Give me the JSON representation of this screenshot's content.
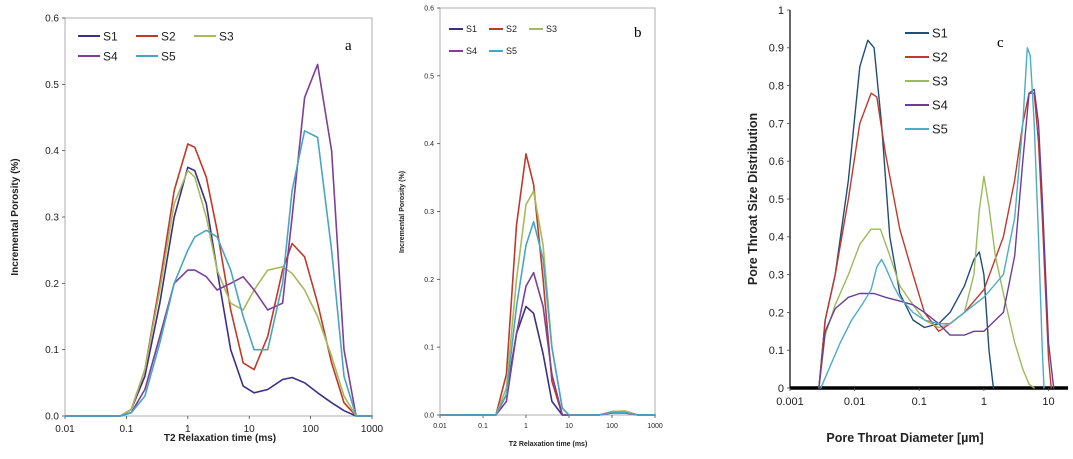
{
  "chart_data": [
    {
      "type": "line",
      "panel_label": "a",
      "xlabel": "T2 Relaxation  time  (ms)",
      "ylabel": "Incremental Porosity (%)",
      "xscale": "log",
      "xlim": [
        0.01,
        1000
      ],
      "ylim": [
        0,
        0.6
      ],
      "x_ticks": [
        "0.01",
        "0.1",
        "1",
        "10",
        "100",
        "1000"
      ],
      "y_ticks": [
        "0.0",
        "0.1",
        "0.2",
        "0.3",
        "0.4",
        "0.5",
        "0.6"
      ],
      "legend": [
        "S1",
        "S2",
        "S3",
        "S4",
        "S5"
      ],
      "series": [
        {
          "name": "S1",
          "color": "#3b2f8a",
          "x": [
            0.01,
            0.08,
            0.12,
            0.2,
            0.35,
            0.6,
            1,
            1.3,
            2,
            3,
            5,
            8,
            12,
            20,
            35,
            50,
            80,
            130,
            220,
            350,
            550,
            1000
          ],
          "y": [
            0,
            0,
            0.01,
            0.06,
            0.17,
            0.3,
            0.375,
            0.37,
            0.32,
            0.22,
            0.1,
            0.045,
            0.035,
            0.04,
            0.055,
            0.058,
            0.05,
            0.035,
            0.02,
            0.008,
            0,
            0
          ]
        },
        {
          "name": "S2",
          "color": "#c0392b",
          "x": [
            0.01,
            0.08,
            0.12,
            0.2,
            0.35,
            0.6,
            1,
            1.3,
            2,
            3,
            5,
            8,
            12,
            20,
            35,
            50,
            80,
            130,
            220,
            350,
            550,
            1000
          ],
          "y": [
            0,
            0,
            0.01,
            0.07,
            0.2,
            0.34,
            0.41,
            0.405,
            0.36,
            0.28,
            0.16,
            0.08,
            0.07,
            0.12,
            0.22,
            0.26,
            0.24,
            0.17,
            0.08,
            0.02,
            0,
            0
          ]
        },
        {
          "name": "S3",
          "color": "#a7ba5b",
          "x": [
            0.01,
            0.08,
            0.12,
            0.2,
            0.35,
            0.6,
            1,
            1.3,
            2,
            3,
            5,
            8,
            12,
            20,
            35,
            50,
            80,
            130,
            220,
            350,
            550,
            1000
          ],
          "y": [
            0,
            0,
            0.01,
            0.07,
            0.19,
            0.32,
            0.37,
            0.36,
            0.3,
            0.22,
            0.17,
            0.16,
            0.19,
            0.22,
            0.225,
            0.215,
            0.19,
            0.15,
            0.09,
            0.03,
            0,
            0
          ]
        },
        {
          "name": "S4",
          "color": "#7d3f98",
          "x": [
            0.01,
            0.08,
            0.12,
            0.2,
            0.35,
            0.6,
            1,
            1.3,
            2,
            3,
            5,
            8,
            12,
            20,
            35,
            50,
            80,
            130,
            220,
            350,
            550,
            1000
          ],
          "y": [
            0,
            0,
            0.005,
            0.04,
            0.12,
            0.2,
            0.22,
            0.22,
            0.21,
            0.19,
            0.2,
            0.21,
            0.19,
            0.16,
            0.17,
            0.3,
            0.48,
            0.53,
            0.4,
            0.1,
            0,
            0
          ]
        },
        {
          "name": "S5",
          "color": "#4aa5c5",
          "x": [
            0.01,
            0.08,
            0.12,
            0.2,
            0.35,
            0.6,
            1,
            1.3,
            2,
            3,
            5,
            8,
            12,
            20,
            35,
            50,
            80,
            130,
            220,
            350,
            550,
            1000
          ],
          "y": [
            0,
            0,
            0.005,
            0.03,
            0.11,
            0.2,
            0.25,
            0.27,
            0.28,
            0.27,
            0.22,
            0.15,
            0.1,
            0.1,
            0.2,
            0.34,
            0.43,
            0.42,
            0.25,
            0.06,
            0,
            0
          ]
        }
      ]
    },
    {
      "type": "line",
      "panel_label": "b",
      "xlabel": "T2 Relaxation time (ms)",
      "ylabel": "Incremental Porosity (%)",
      "xscale": "log",
      "xlim": [
        0.01,
        1000
      ],
      "ylim": [
        0,
        0.6
      ],
      "x_ticks": [
        "0.01",
        "0.1",
        "1",
        "10",
        "100",
        "1000"
      ],
      "y_ticks": [
        "0.0",
        "0.1",
        "0.2",
        "0.3",
        "0.4",
        "0.5",
        "0.6"
      ],
      "legend": [
        "S1",
        "S2",
        "S3",
        "S4",
        "S5"
      ],
      "series": [
        {
          "name": "S1",
          "color": "#3b2f8a",
          "x": [
            0.01,
            0.2,
            0.35,
            0.6,
            1,
            1.5,
            2.5,
            4,
            7,
            10,
            50,
            100,
            200,
            400,
            1000
          ],
          "y": [
            0,
            0,
            0.03,
            0.12,
            0.16,
            0.15,
            0.09,
            0.02,
            0,
            0,
            0,
            0.004,
            0.004,
            0,
            0
          ]
        },
        {
          "name": "S2",
          "color": "#c0392b",
          "x": [
            0.01,
            0.2,
            0.35,
            0.6,
            1,
            1.5,
            2.5,
            4,
            7,
            10,
            50,
            100,
            200,
            400,
            1000
          ],
          "y": [
            0,
            0,
            0.06,
            0.28,
            0.385,
            0.34,
            0.2,
            0.05,
            0,
            0,
            0,
            0.005,
            0.005,
            0,
            0
          ]
        },
        {
          "name": "S3",
          "color": "#a7ba5b",
          "x": [
            0.01,
            0.2,
            0.35,
            0.6,
            1,
            1.5,
            2.5,
            4,
            7,
            10,
            50,
            100,
            200,
            400,
            1000
          ],
          "y": [
            0,
            0,
            0.04,
            0.2,
            0.31,
            0.33,
            0.25,
            0.1,
            0.01,
            0,
            0,
            0.005,
            0.006,
            0,
            0
          ]
        },
        {
          "name": "S4",
          "color": "#7d3f98",
          "x": [
            0.01,
            0.2,
            0.35,
            0.6,
            1,
            1.5,
            2.5,
            4,
            7,
            10,
            50,
            100,
            200,
            400,
            1000
          ],
          "y": [
            0,
            0,
            0.02,
            0.12,
            0.19,
            0.21,
            0.16,
            0.06,
            0,
            0,
            0,
            0.003,
            0.003,
            0,
            0
          ]
        },
        {
          "name": "S5",
          "color": "#4aa5c5",
          "x": [
            0.01,
            0.2,
            0.35,
            0.6,
            1,
            1.5,
            2.5,
            4,
            7,
            10,
            50,
            100,
            200,
            400,
            1000
          ],
          "y": [
            0,
            0,
            0.03,
            0.16,
            0.25,
            0.285,
            0.23,
            0.1,
            0.01,
            0,
            0,
            0.004,
            0.004,
            0,
            0
          ]
        }
      ]
    },
    {
      "type": "line",
      "panel_label": "c",
      "xlabel": "Pore Throat Diameter [µm]",
      "ylabel": "Pore Throat  Size Distribution",
      "xscale": "log",
      "xlim": [
        0.001,
        20
      ],
      "ylim": [
        0,
        1
      ],
      "x_ticks": [
        "0.001",
        "0.01",
        "0.1",
        "1",
        "10"
      ],
      "y_ticks": [
        "0",
        "0.1",
        "0.2",
        "0.3",
        "0.4",
        "0.5",
        "0.6",
        "0.7",
        "0.8",
        "0.9",
        "1"
      ],
      "legend": [
        "S1",
        "S2",
        "S3",
        "S4",
        "S5"
      ],
      "series": [
        {
          "name": "S1",
          "color": "#1f4e79",
          "x": [
            0.0028,
            0.0035,
            0.005,
            0.008,
            0.012,
            0.016,
            0.02,
            0.026,
            0.035,
            0.05,
            0.08,
            0.12,
            0.2,
            0.3,
            0.5,
            0.7,
            0.85,
            1,
            1.2,
            1.4
          ],
          "y": [
            0,
            0.18,
            0.3,
            0.55,
            0.85,
            0.92,
            0.9,
            0.7,
            0.4,
            0.25,
            0.18,
            0.16,
            0.17,
            0.2,
            0.27,
            0.34,
            0.36,
            0.3,
            0.1,
            0
          ]
        },
        {
          "name": "S2",
          "color": "#c0392b",
          "x": [
            0.0028,
            0.0035,
            0.005,
            0.008,
            0.012,
            0.018,
            0.022,
            0.03,
            0.05,
            0.08,
            0.12,
            0.2,
            0.3,
            0.5,
            1,
            2,
            3,
            4,
            5,
            6,
            7,
            8,
            9,
            10,
            11
          ],
          "y": [
            0,
            0.18,
            0.3,
            0.5,
            0.7,
            0.78,
            0.77,
            0.62,
            0.42,
            0.3,
            0.2,
            0.15,
            0.17,
            0.2,
            0.26,
            0.4,
            0.55,
            0.7,
            0.78,
            0.78,
            0.65,
            0.45,
            0.25,
            0.08,
            0
          ]
        },
        {
          "name": "S3",
          "color": "#9bbb59",
          "x": [
            0.0028,
            0.0035,
            0.005,
            0.008,
            0.012,
            0.018,
            0.025,
            0.035,
            0.05,
            0.08,
            0.12,
            0.2,
            0.3,
            0.5,
            0.7,
            0.85,
            1,
            1.2,
            1.5,
            2,
            3,
            4,
            5,
            6
          ],
          "y": [
            0,
            0.14,
            0.22,
            0.3,
            0.38,
            0.42,
            0.42,
            0.35,
            0.27,
            0.22,
            0.18,
            0.16,
            0.17,
            0.2,
            0.3,
            0.47,
            0.56,
            0.48,
            0.35,
            0.25,
            0.12,
            0.05,
            0.01,
            0
          ]
        },
        {
          "name": "S4",
          "color": "#6a3d9a",
          "x": [
            0.0028,
            0.0035,
            0.005,
            0.008,
            0.012,
            0.02,
            0.03,
            0.05,
            0.08,
            0.12,
            0.2,
            0.3,
            0.5,
            0.7,
            1,
            2,
            3,
            4,
            5,
            6,
            7,
            8,
            9,
            10,
            12
          ],
          "y": [
            0,
            0.15,
            0.21,
            0.24,
            0.25,
            0.25,
            0.24,
            0.23,
            0.22,
            0.2,
            0.17,
            0.14,
            0.14,
            0.15,
            0.15,
            0.2,
            0.35,
            0.6,
            0.78,
            0.79,
            0.7,
            0.5,
            0.3,
            0.12,
            0
          ]
        },
        {
          "name": "S5",
          "color": "#4bacc6",
          "x": [
            0.003,
            0.004,
            0.006,
            0.009,
            0.013,
            0.018,
            0.022,
            0.026,
            0.03,
            0.04,
            0.05,
            0.08,
            0.12,
            0.2,
            0.3,
            0.5,
            1,
            2,
            3,
            4,
            4.7,
            5.2,
            6,
            7,
            8,
            8.5
          ],
          "y": [
            0,
            0.05,
            0.12,
            0.18,
            0.22,
            0.26,
            0.32,
            0.34,
            0.32,
            0.27,
            0.24,
            0.2,
            0.18,
            0.17,
            0.17,
            0.2,
            0.24,
            0.3,
            0.45,
            0.7,
            0.9,
            0.88,
            0.7,
            0.4,
            0.1,
            0
          ]
        }
      ]
    }
  ]
}
